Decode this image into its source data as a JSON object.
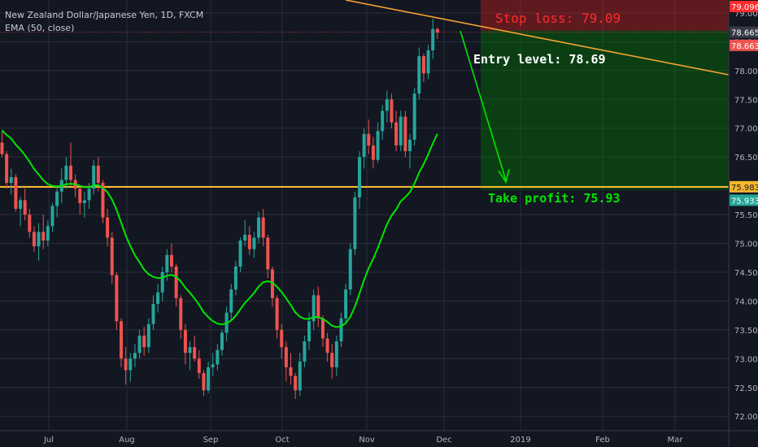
{
  "chart_data": {
    "type": "candlestick",
    "title": "New Zealand Dollar/Japanese Yen, 1D, FXCM",
    "indicator": "EMA (50, close)",
    "colors": {
      "up": "#26a69a",
      "down": "#ef5350",
      "ema": "#00e600",
      "trend": "#f7a233",
      "level": "#f5b82e",
      "stop": "#ff2b2b",
      "entry": "#ffffff",
      "target": "#00e600",
      "background": "#131722",
      "grid": "#2a2e39",
      "axis_text": "#b2b5be"
    },
    "y_axis": {
      "range": [
        71.9,
        79.2
      ],
      "ticks": [
        "72.00",
        "72.50",
        "73.00",
        "73.50",
        "74.00",
        "74.50",
        "75.00",
        "75.50",
        "76.00",
        "76.50",
        "77.00",
        "77.50",
        "78.00",
        "78.50",
        "79.00"
      ]
    },
    "x_axis": {
      "labels": [
        "Jul",
        "Aug",
        "Sep",
        "Oct",
        "Nov",
        "Dec",
        "2019",
        "Feb",
        "Mar"
      ]
    },
    "price_tags": [
      {
        "value": 79.096,
        "label": "79.096",
        "color": "#ff2b2b"
      },
      {
        "value": 78.665,
        "label": "78.665",
        "color": "#363a45"
      },
      {
        "value": 78.663,
        "label": "78.663",
        "color": "#ef5350"
      },
      {
        "value": 75.983,
        "label": "75.983",
        "color": "#f5b82e"
      },
      {
        "value": 75.933,
        "label": "75.933",
        "color": "#26a69a"
      }
    ],
    "annotations": {
      "stop_loss": "Stop loss: 79.09",
      "entry": "Entry level: 78.69",
      "take_profit": "Take profit: 75.93"
    },
    "levels": {
      "stop": 79.09,
      "entry": 78.69,
      "target": 75.93,
      "horizontal": 75.98
    },
    "candles": [
      [
        76.75,
        76.95,
        76.5,
        76.55
      ],
      [
        76.55,
        76.6,
        75.95,
        76.05
      ],
      [
        76.05,
        76.3,
        75.85,
        76.15
      ],
      [
        76.15,
        76.2,
        75.55,
        75.6
      ],
      [
        75.6,
        75.8,
        75.3,
        75.75
      ],
      [
        75.75,
        75.95,
        75.4,
        75.5
      ],
      [
        75.5,
        75.6,
        75.1,
        75.2
      ],
      [
        75.2,
        75.3,
        74.85,
        74.95
      ],
      [
        74.95,
        75.35,
        74.7,
        75.2
      ],
      [
        75.2,
        75.5,
        74.9,
        75.05
      ],
      [
        75.05,
        75.4,
        74.95,
        75.3
      ],
      [
        75.3,
        75.7,
        75.2,
        75.65
      ],
      [
        75.65,
        76.0,
        75.45,
        75.9
      ],
      [
        75.9,
        76.3,
        75.7,
        76.1
      ],
      [
        76.1,
        76.5,
        75.95,
        76.35
      ],
      [
        76.35,
        76.75,
        76.0,
        76.1
      ],
      [
        76.1,
        76.2,
        75.8,
        75.95
      ],
      [
        75.95,
        76.0,
        75.5,
        75.7
      ],
      [
        75.7,
        75.9,
        75.45,
        75.75
      ],
      [
        75.75,
        76.05,
        75.6,
        75.95
      ],
      [
        75.95,
        76.45,
        75.85,
        76.35
      ],
      [
        76.35,
        76.5,
        75.9,
        76.05
      ],
      [
        76.05,
        76.1,
        75.35,
        75.45
      ],
      [
        75.45,
        75.6,
        74.95,
        75.1
      ],
      [
        75.1,
        75.2,
        74.3,
        74.45
      ],
      [
        74.45,
        74.5,
        73.5,
        73.65
      ],
      [
        73.65,
        73.7,
        72.85,
        73.0
      ],
      [
        73.0,
        73.2,
        72.55,
        72.8
      ],
      [
        72.8,
        73.1,
        72.6,
        73.0
      ],
      [
        73.0,
        73.25,
        72.85,
        73.1
      ],
      [
        73.1,
        73.5,
        73.0,
        73.4
      ],
      [
        73.4,
        73.55,
        73.05,
        73.2
      ],
      [
        73.2,
        73.7,
        73.1,
        73.6
      ],
      [
        73.6,
        74.1,
        73.5,
        73.95
      ],
      [
        73.95,
        74.3,
        73.8,
        74.15
      ],
      [
        74.15,
        74.6,
        74.0,
        74.5
      ],
      [
        74.5,
        74.9,
        74.35,
        74.8
      ],
      [
        74.8,
        75.0,
        74.5,
        74.6
      ],
      [
        74.6,
        74.65,
        73.9,
        74.05
      ],
      [
        74.05,
        74.1,
        73.35,
        73.5
      ],
      [
        73.5,
        73.6,
        72.9,
        73.1
      ],
      [
        73.1,
        73.3,
        72.8,
        73.2
      ],
      [
        73.2,
        73.4,
        72.95,
        73.0
      ],
      [
        73.0,
        73.15,
        72.65,
        72.75
      ],
      [
        72.75,
        72.8,
        72.35,
        72.45
      ],
      [
        72.45,
        72.95,
        72.4,
        72.85
      ],
      [
        72.85,
        73.1,
        72.7,
        72.9
      ],
      [
        72.9,
        73.25,
        72.8,
        73.15
      ],
      [
        73.15,
        73.5,
        73.05,
        73.45
      ],
      [
        73.45,
        73.9,
        73.3,
        73.8
      ],
      [
        73.8,
        74.3,
        73.65,
        74.2
      ],
      [
        74.2,
        74.7,
        74.1,
        74.6
      ],
      [
        74.6,
        75.1,
        74.5,
        75.05
      ],
      [
        75.05,
        75.4,
        74.95,
        75.15
      ],
      [
        75.15,
        75.3,
        74.8,
        74.9
      ],
      [
        74.9,
        75.2,
        74.75,
        75.1
      ],
      [
        75.1,
        75.55,
        75.0,
        75.45
      ],
      [
        75.45,
        75.6,
        74.95,
        75.1
      ],
      [
        75.1,
        75.15,
        74.4,
        74.55
      ],
      [
        74.55,
        74.6,
        73.9,
        74.05
      ],
      [
        74.05,
        74.1,
        73.35,
        73.5
      ],
      [
        73.5,
        73.6,
        73.0,
        73.2
      ],
      [
        73.2,
        73.3,
        72.6,
        72.85
      ],
      [
        72.85,
        73.1,
        72.55,
        72.7
      ],
      [
        72.7,
        72.75,
        72.3,
        72.45
      ],
      [
        72.45,
        73.1,
        72.35,
        72.95
      ],
      [
        72.95,
        73.4,
        72.85,
        73.3
      ],
      [
        73.3,
        73.8,
        73.15,
        73.65
      ],
      [
        73.65,
        74.2,
        73.5,
        74.1
      ],
      [
        74.1,
        74.25,
        73.55,
        73.7
      ],
      [
        73.7,
        73.75,
        73.2,
        73.35
      ],
      [
        73.35,
        73.45,
        72.95,
        73.1
      ],
      [
        73.1,
        73.25,
        72.65,
        72.85
      ],
      [
        72.85,
        73.4,
        72.7,
        73.3
      ],
      [
        73.3,
        73.8,
        73.2,
        73.7
      ],
      [
        73.7,
        74.3,
        73.6,
        74.2
      ],
      [
        74.2,
        75.0,
        74.1,
        74.9
      ],
      [
        74.9,
        75.9,
        74.8,
        75.8
      ],
      [
        75.8,
        76.6,
        75.6,
        76.5
      ],
      [
        76.5,
        77.0,
        76.3,
        76.9
      ],
      [
        76.9,
        77.15,
        76.55,
        76.7
      ],
      [
        76.7,
        76.85,
        76.3,
        76.45
      ],
      [
        76.45,
        77.1,
        76.4,
        76.95
      ],
      [
        76.95,
        77.4,
        76.8,
        77.3
      ],
      [
        77.3,
        77.65,
        77.1,
        77.5
      ],
      [
        77.5,
        77.6,
        77.0,
        77.1
      ],
      [
        77.1,
        77.3,
        76.6,
        76.7
      ],
      [
        76.7,
        77.3,
        76.6,
        77.2
      ],
      [
        77.2,
        77.3,
        76.5,
        76.6
      ],
      [
        76.6,
        76.9,
        76.3,
        76.8
      ],
      [
        76.8,
        77.7,
        76.7,
        77.6
      ],
      [
        77.6,
        78.4,
        77.5,
        78.25
      ],
      [
        78.25,
        78.3,
        77.8,
        77.95
      ],
      [
        77.95,
        78.45,
        77.85,
        78.35
      ],
      [
        78.35,
        78.9,
        78.2,
        78.72
      ],
      [
        78.72,
        78.75,
        78.55,
        78.66
      ]
    ]
  }
}
